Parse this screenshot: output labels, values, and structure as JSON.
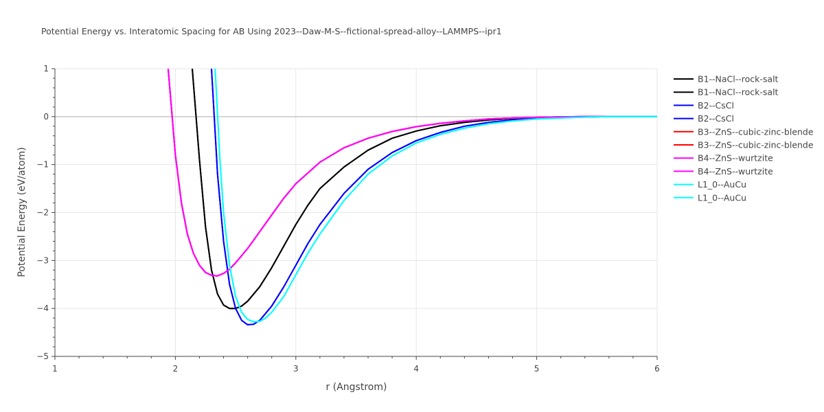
{
  "chart_data": {
    "type": "line",
    "title": "Potential Energy vs. Interatomic Spacing for AB Using 2023--Daw-M-S--fictional-spread-alloy--LAMMPS--ipr1",
    "xlabel": "r (Angstrom)",
    "ylabel": "Potential Energy (eV/atom)",
    "xlim": [
      1,
      6
    ],
    "ylim": [
      -5,
      1
    ],
    "xticks": [
      1,
      2,
      3,
      4,
      5,
      6
    ],
    "yticks": [
      1,
      0,
      -1,
      -2,
      -3,
      -4,
      -5
    ],
    "xtick_labels": [
      "1",
      "2",
      "3",
      "4",
      "5",
      "6"
    ],
    "ytick_labels": [
      "1",
      "0",
      "−1",
      "−2",
      "−3",
      "−4",
      "−5"
    ],
    "grid": true,
    "legend_position": "top-right",
    "series": [
      {
        "name": "B1--NaCl--rock-salt",
        "color": "#000000",
        "x": [
          2.14,
          2.2,
          2.25,
          2.3,
          2.35,
          2.4,
          2.45,
          2.5,
          2.55,
          2.6,
          2.7,
          2.8,
          2.9,
          3.0,
          3.1,
          3.2,
          3.4,
          3.6,
          3.8,
          4.0,
          4.2,
          4.4,
          4.6,
          4.8,
          5.0,
          5.2,
          5.4,
          5.6,
          6.0
        ],
        "y": [
          1.0,
          -0.9,
          -2.3,
          -3.2,
          -3.7,
          -3.93,
          -4.0,
          -4.0,
          -3.95,
          -3.85,
          -3.55,
          -3.15,
          -2.7,
          -2.25,
          -1.85,
          -1.5,
          -1.05,
          -0.7,
          -0.45,
          -0.3,
          -0.19,
          -0.12,
          -0.07,
          -0.04,
          -0.02,
          -0.01,
          0.0,
          0.0,
          0.0
        ]
      },
      {
        "name": "B1--NaCl--rock-salt",
        "color": "#000000",
        "x": [
          2.14,
          2.2,
          2.25,
          2.3,
          2.35,
          2.4,
          2.45,
          2.5,
          2.55,
          2.6,
          2.7,
          2.8,
          2.9,
          3.0,
          3.1,
          3.2,
          3.4,
          3.6,
          3.8,
          4.0,
          4.2,
          4.4,
          4.6,
          4.8,
          5.0,
          5.2,
          5.4,
          5.6,
          6.0
        ],
        "y": [
          1.0,
          -0.9,
          -2.3,
          -3.2,
          -3.7,
          -3.93,
          -4.0,
          -4.0,
          -3.95,
          -3.85,
          -3.55,
          -3.15,
          -2.7,
          -2.25,
          -1.85,
          -1.5,
          -1.05,
          -0.7,
          -0.45,
          -0.3,
          -0.19,
          -0.12,
          -0.07,
          -0.04,
          -0.02,
          -0.01,
          0.0,
          0.0,
          0.0
        ]
      },
      {
        "name": "B2--CsCl",
        "color": "#0000ff",
        "x": [
          2.3,
          2.35,
          2.4,
          2.45,
          2.5,
          2.55,
          2.6,
          2.65,
          2.7,
          2.8,
          2.9,
          3.0,
          3.1,
          3.2,
          3.4,
          3.6,
          3.8,
          4.0,
          4.2,
          4.4,
          4.6,
          4.8,
          5.0,
          5.2,
          5.4,
          5.6,
          6.0
        ],
        "y": [
          1.0,
          -1.2,
          -2.6,
          -3.5,
          -4.0,
          -4.25,
          -4.34,
          -4.33,
          -4.25,
          -3.95,
          -3.55,
          -3.1,
          -2.65,
          -2.25,
          -1.6,
          -1.1,
          -0.75,
          -0.5,
          -0.33,
          -0.2,
          -0.12,
          -0.07,
          -0.04,
          -0.02,
          -0.01,
          0.0,
          0.0
        ]
      },
      {
        "name": "B2--CsCl",
        "color": "#0000ff",
        "x": [
          2.3,
          2.35,
          2.4,
          2.45,
          2.5,
          2.55,
          2.6,
          2.65,
          2.7,
          2.8,
          2.9,
          3.0,
          3.1,
          3.2,
          3.4,
          3.6,
          3.8,
          4.0,
          4.2,
          4.4,
          4.6,
          4.8,
          5.0,
          5.2,
          5.4,
          5.6,
          6.0
        ],
        "y": [
          1.0,
          -1.2,
          -2.6,
          -3.5,
          -4.0,
          -4.25,
          -4.34,
          -4.33,
          -4.25,
          -3.95,
          -3.55,
          -3.1,
          -2.65,
          -2.25,
          -1.6,
          -1.1,
          -0.75,
          -0.5,
          -0.33,
          -0.2,
          -0.12,
          -0.07,
          -0.04,
          -0.02,
          -0.01,
          0.0,
          0.0
        ]
      },
      {
        "name": "B3--ZnS--cubic-zinc-blende",
        "color": "#ff0000",
        "x": [
          1.94,
          2.0,
          2.05,
          2.1,
          2.15,
          2.2,
          2.25,
          2.3,
          2.35,
          2.4,
          2.45,
          2.5,
          2.6,
          2.7,
          2.8,
          2.9,
          3.0,
          3.2,
          3.4,
          3.6,
          3.8,
          4.0,
          4.2,
          4.4,
          4.6,
          4.8,
          5.0,
          5.2,
          5.4,
          6.0
        ],
        "y": [
          1.0,
          -0.8,
          -1.8,
          -2.45,
          -2.85,
          -3.1,
          -3.25,
          -3.31,
          -3.32,
          -3.27,
          -3.18,
          -3.05,
          -2.75,
          -2.4,
          -2.05,
          -1.7,
          -1.4,
          -0.95,
          -0.65,
          -0.45,
          -0.31,
          -0.21,
          -0.14,
          -0.09,
          -0.05,
          -0.03,
          -0.015,
          -0.005,
          0.0,
          0.0
        ]
      },
      {
        "name": "B3--ZnS--cubic-zinc-blende",
        "color": "#ff0000",
        "x": [
          1.94,
          2.0,
          2.05,
          2.1,
          2.15,
          2.2,
          2.25,
          2.3,
          2.35,
          2.4,
          2.45,
          2.5,
          2.6,
          2.7,
          2.8,
          2.9,
          3.0,
          3.2,
          3.4,
          3.6,
          3.8,
          4.0,
          4.2,
          4.4,
          4.6,
          4.8,
          5.0,
          5.2,
          5.4,
          6.0
        ],
        "y": [
          1.0,
          -0.8,
          -1.8,
          -2.45,
          -2.85,
          -3.1,
          -3.25,
          -3.31,
          -3.32,
          -3.27,
          -3.18,
          -3.05,
          -2.75,
          -2.4,
          -2.05,
          -1.7,
          -1.4,
          -0.95,
          -0.65,
          -0.45,
          -0.31,
          -0.21,
          -0.14,
          -0.09,
          -0.05,
          -0.03,
          -0.015,
          -0.005,
          0.0,
          0.0
        ]
      },
      {
        "name": "B4--ZnS--wurtzite",
        "color": "#ff00ff",
        "x": [
          1.94,
          2.0,
          2.05,
          2.1,
          2.15,
          2.2,
          2.25,
          2.3,
          2.35,
          2.4,
          2.45,
          2.5,
          2.6,
          2.7,
          2.8,
          2.9,
          3.0,
          3.2,
          3.4,
          3.6,
          3.8,
          4.0,
          4.2,
          4.4,
          4.6,
          4.8,
          5.0,
          5.2,
          5.4,
          6.0
        ],
        "y": [
          1.0,
          -0.8,
          -1.8,
          -2.45,
          -2.85,
          -3.1,
          -3.25,
          -3.31,
          -3.32,
          -3.27,
          -3.18,
          -3.05,
          -2.75,
          -2.4,
          -2.05,
          -1.7,
          -1.4,
          -0.95,
          -0.65,
          -0.45,
          -0.31,
          -0.21,
          -0.14,
          -0.09,
          -0.05,
          -0.03,
          -0.015,
          -0.005,
          0.0,
          0.0
        ]
      },
      {
        "name": "B4--ZnS--wurtzite",
        "color": "#ff00ff",
        "x": [
          1.94,
          2.0,
          2.05,
          2.1,
          2.15,
          2.2,
          2.25,
          2.3,
          2.35,
          2.4,
          2.45,
          2.5,
          2.6,
          2.7,
          2.8,
          2.9,
          3.0,
          3.2,
          3.4,
          3.6,
          3.8,
          4.0,
          4.2,
          4.4,
          4.6,
          4.8,
          5.0,
          5.2,
          5.4,
          6.0
        ],
        "y": [
          1.0,
          -0.8,
          -1.8,
          -2.45,
          -2.85,
          -3.1,
          -3.25,
          -3.31,
          -3.32,
          -3.27,
          -3.18,
          -3.05,
          -2.75,
          -2.4,
          -2.05,
          -1.7,
          -1.4,
          -0.95,
          -0.65,
          -0.45,
          -0.31,
          -0.21,
          -0.14,
          -0.09,
          -0.05,
          -0.03,
          -0.015,
          -0.005,
          0.0,
          0.0
        ]
      },
      {
        "name": "L1_0--AuCu",
        "color": "#00ffff",
        "x": [
          2.33,
          2.37,
          2.4,
          2.45,
          2.5,
          2.55,
          2.6,
          2.65,
          2.7,
          2.75,
          2.8,
          2.9,
          3.0,
          3.1,
          3.2,
          3.4,
          3.6,
          3.8,
          4.0,
          4.2,
          4.4,
          4.6,
          4.8,
          5.0,
          5.2,
          5.4,
          5.6,
          6.0
        ],
        "y": [
          1.0,
          -0.9,
          -2.0,
          -3.1,
          -3.75,
          -4.08,
          -4.23,
          -4.28,
          -4.27,
          -4.2,
          -4.08,
          -3.75,
          -3.3,
          -2.85,
          -2.45,
          -1.75,
          -1.2,
          -0.82,
          -0.55,
          -0.37,
          -0.24,
          -0.15,
          -0.09,
          -0.05,
          -0.03,
          -0.01,
          0.0,
          0.0
        ]
      },
      {
        "name": "L1_0--AuCu",
        "color": "#00ffff",
        "x": [
          2.33,
          2.37,
          2.4,
          2.45,
          2.5,
          2.55,
          2.6,
          2.65,
          2.7,
          2.75,
          2.8,
          2.9,
          3.0,
          3.1,
          3.2,
          3.4,
          3.6,
          3.8,
          4.0,
          4.2,
          4.4,
          4.6,
          4.8,
          5.0,
          5.2,
          5.4,
          5.6,
          6.0
        ],
        "y": [
          1.0,
          -0.9,
          -2.0,
          -3.1,
          -3.75,
          -4.08,
          -4.23,
          -4.28,
          -4.27,
          -4.2,
          -4.08,
          -3.75,
          -3.3,
          -2.85,
          -2.45,
          -1.75,
          -1.2,
          -0.82,
          -0.55,
          -0.37,
          -0.24,
          -0.15,
          -0.09,
          -0.05,
          -0.03,
          -0.01,
          0.0,
          0.0
        ]
      }
    ]
  }
}
